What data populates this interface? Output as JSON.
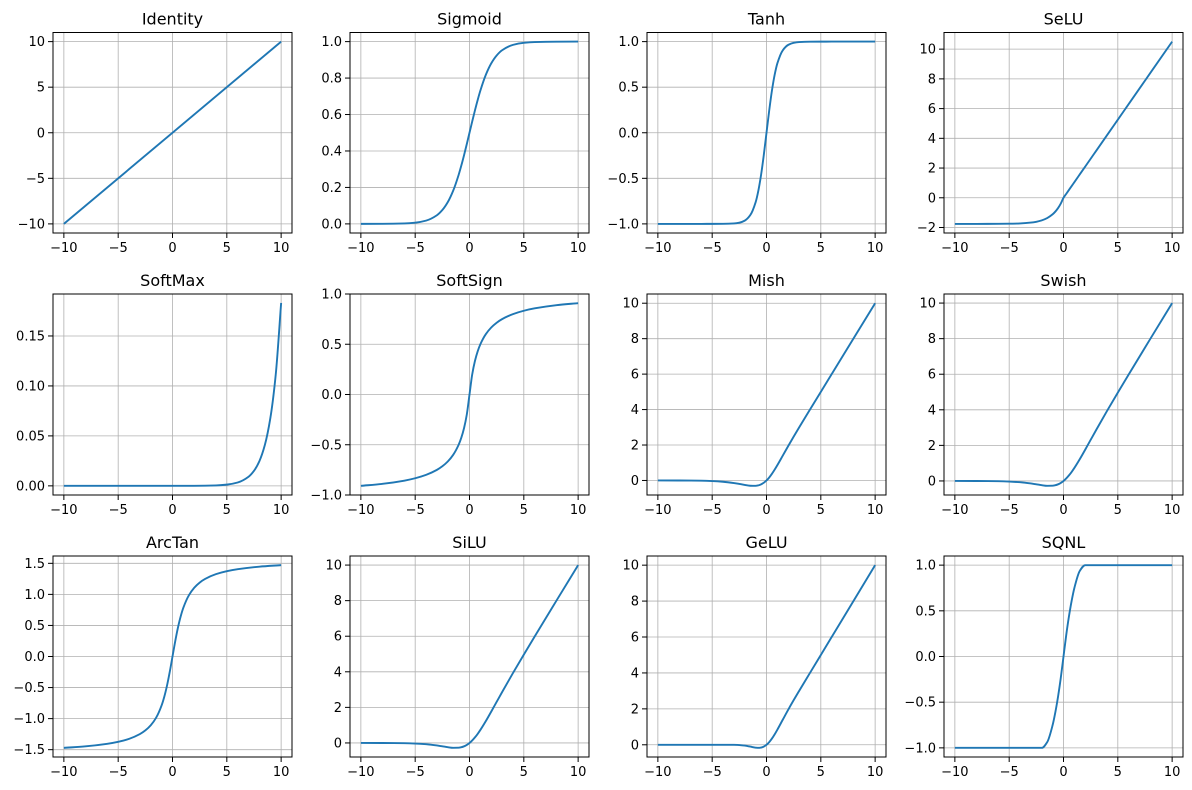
{
  "figure": {
    "line_color": "#1f77b4",
    "grid": true,
    "layout": "3x4 grid"
  },
  "chart_data": [
    {
      "type": "line",
      "title": "Identity",
      "xlim": [
        -11,
        11
      ],
      "ylim": [
        -11,
        11
      ],
      "xticks": [
        "−10",
        "−5",
        "0",
        "5",
        "10"
      ],
      "xtick_values": [
        -10,
        -5,
        0,
        5,
        10
      ],
      "yticks": [
        "−10",
        "−5",
        "0",
        "5",
        "10"
      ],
      "ytick_values": [
        -10,
        -5,
        0,
        5,
        10
      ],
      "x": [
        -10,
        10
      ],
      "y": [
        -10,
        10
      ]
    },
    {
      "type": "line",
      "title": "Sigmoid",
      "xlim": [
        -11,
        11
      ],
      "ylim": [
        -0.05,
        1.05
      ],
      "xticks": [
        "−10",
        "−5",
        "0",
        "5",
        "10"
      ],
      "xtick_values": [
        -10,
        -5,
        0,
        5,
        10
      ],
      "yticks": [
        "0.0",
        "0.2",
        "0.4",
        "0.6",
        "0.8",
        "1.0"
      ],
      "ytick_values": [
        0,
        0.2,
        0.4,
        0.6,
        0.8,
        1.0
      ],
      "x": [
        -10,
        -8,
        -6,
        -5,
        -4,
        -3,
        -2.5,
        -2,
        -1.5,
        -1,
        -0.75,
        -0.5,
        -0.25,
        0,
        0.25,
        0.5,
        0.75,
        1,
        1.5,
        2,
        2.5,
        3,
        4,
        5,
        6,
        8,
        10
      ],
      "y": [
        4.54e-05,
        0.000335,
        0.00247,
        0.00669,
        0.018,
        0.0474,
        0.0759,
        0.1192,
        0.1824,
        0.2689,
        0.3208,
        0.3775,
        0.4378,
        0.5,
        0.5622,
        0.6225,
        0.6792,
        0.7311,
        0.8176,
        0.8808,
        0.9241,
        0.9526,
        0.982,
        0.9933,
        0.9975,
        0.9997,
        1.0
      ]
    },
    {
      "type": "line",
      "title": "Tanh",
      "xlim": [
        -11,
        11
      ],
      "ylim": [
        -1.1,
        1.1
      ],
      "xticks": [
        "−10",
        "−5",
        "0",
        "5",
        "10"
      ],
      "xtick_values": [
        -10,
        -5,
        0,
        5,
        10
      ],
      "yticks": [
        "−1.0",
        "−0.5",
        "0.0",
        "0.5",
        "1.0"
      ],
      "ytick_values": [
        -1,
        -0.5,
        0,
        0.5,
        1
      ],
      "x": [
        -10,
        -8,
        -6,
        -5,
        -4,
        -3,
        -2.5,
        -2,
        -1.5,
        -1,
        -0.75,
        -0.5,
        -0.25,
        0,
        0.25,
        0.5,
        0.75,
        1,
        1.5,
        2,
        2.5,
        3,
        4,
        5,
        6,
        8,
        10
      ],
      "y": [
        -1,
        -1,
        -1,
        -0.9999,
        -0.9993,
        -0.9951,
        -0.9866,
        -0.964,
        -0.9051,
        -0.7616,
        -0.6351,
        -0.4621,
        -0.2449,
        0,
        0.2449,
        0.4621,
        0.6351,
        0.7616,
        0.9051,
        0.964,
        0.9866,
        0.9951,
        0.9993,
        0.9999,
        1,
        1,
        1
      ]
    },
    {
      "type": "line",
      "title": "SeLU",
      "xlim": [
        -11,
        11
      ],
      "ylim": [
        -2.37,
        11.12
      ],
      "xticks": [
        "−10",
        "−5",
        "0",
        "5",
        "10"
      ],
      "xtick_values": [
        -10,
        -5,
        0,
        5,
        10
      ],
      "yticks": [
        "−2",
        "0",
        "2",
        "4",
        "6",
        "8",
        "10"
      ],
      "ytick_values": [
        -2,
        0,
        2,
        4,
        6,
        8,
        10
      ],
      "x": [
        -10,
        -8,
        -6,
        -5,
        -4,
        -3,
        -2.5,
        -2,
        -1.5,
        -1,
        -0.75,
        -0.5,
        -0.25,
        0,
        0.25,
        0.5,
        0.75,
        1,
        1.5,
        2,
        2.5,
        3,
        4,
        5,
        6,
        8,
        10
      ],
      "y": [
        -1.758,
        -1.7575,
        -1.7537,
        -1.7463,
        -1.7259,
        -1.6706,
        -1.6138,
        -1.5202,
        -1.3658,
        -1.1113,
        -0.9276,
        -0.6918,
        -0.3889,
        0,
        0.2627,
        0.5254,
        0.788,
        1.0507,
        1.5761,
        2.1014,
        2.6268,
        3.1521,
        4.2028,
        5.2535,
        6.3042,
        8.4056,
        10.507
      ]
    },
    {
      "type": "line",
      "title": "SoftMax",
      "xlim": [
        -11,
        11
      ],
      "ylim": [
        -0.00915,
        0.192
      ],
      "xticks": [
        "−10",
        "−5",
        "0",
        "5",
        "10"
      ],
      "xtick_values": [
        -10,
        -5,
        0,
        5,
        10
      ],
      "yticks": [
        "0.00",
        "0.05",
        "0.10",
        "0.15"
      ],
      "ytick_values": [
        0,
        0.05,
        0.1,
        0.15
      ],
      "x": [
        -10,
        -5,
        0,
        2,
        4,
        5,
        6,
        7,
        7.5,
        8,
        8.5,
        9,
        9.5,
        10
      ],
      "y": [
        0,
        0,
        8.3e-06,
        6.14e-05,
        0.000454,
        0.00123,
        0.00335,
        0.00911,
        0.01502,
        0.02477,
        0.04084,
        0.06732,
        0.111,
        0.183
      ]
    },
    {
      "type": "line",
      "title": "SoftSign",
      "xlim": [
        -11,
        11
      ],
      "ylim": [
        -1.0,
        1.0
      ],
      "xticks": [
        "−10",
        "−5",
        "0",
        "5",
        "10"
      ],
      "xtick_values": [
        -10,
        -5,
        0,
        5,
        10
      ],
      "yticks": [
        "−1.0",
        "−0.5",
        "0.0",
        "0.5",
        "1.0"
      ],
      "ytick_values": [
        -1,
        -0.5,
        0,
        0.5,
        1
      ],
      "x": [
        -10,
        -8,
        -6,
        -5,
        -4,
        -3,
        -2.5,
        -2,
        -1.5,
        -1,
        -0.75,
        -0.5,
        -0.25,
        0,
        0.25,
        0.5,
        0.75,
        1,
        1.5,
        2,
        2.5,
        3,
        4,
        5,
        6,
        8,
        10
      ],
      "y": [
        -0.9091,
        -0.8889,
        -0.8571,
        -0.8333,
        -0.8,
        -0.75,
        -0.7143,
        -0.6667,
        -0.6,
        -0.5,
        -0.4286,
        -0.3333,
        -0.2,
        0,
        0.2,
        0.3333,
        0.4286,
        0.5,
        0.6,
        0.6667,
        0.7143,
        0.75,
        0.8,
        0.8333,
        0.8571,
        0.8889,
        0.9091
      ]
    },
    {
      "type": "line",
      "title": "Mish",
      "xlim": [
        -11,
        11
      ],
      "ylim": [
        -0.82,
        10.52
      ],
      "xticks": [
        "−10",
        "−5",
        "0",
        "5",
        "10"
      ],
      "xtick_values": [
        -10,
        -5,
        0,
        5,
        10
      ],
      "yticks": [
        "0",
        "2",
        "4",
        "6",
        "8",
        "10"
      ],
      "ytick_values": [
        0,
        2,
        4,
        6,
        8,
        10
      ],
      "x": [
        -10,
        -8,
        -6,
        -5,
        -4,
        -3,
        -2.5,
        -2,
        -1.5,
        -1,
        -0.75,
        -0.5,
        -0.25,
        0,
        0.25,
        0.5,
        0.75,
        1,
        1.5,
        2,
        2.5,
        3,
        4,
        5,
        6,
        8,
        10
      ],
      "y": [
        -0.00045,
        -0.00268,
        -0.01486,
        -0.03357,
        -0.0726,
        -0.1457,
        -0.1968,
        -0.2525,
        -0.2981,
        -0.3034,
        -0.2765,
        -0.2207,
        -0.1299,
        0,
        0.1696,
        0.3753,
        0.61,
        0.8651,
        1.4033,
        1.9442,
        2.4716,
        2.9865,
        3.9974,
        4.9996,
        6.0,
        8.0,
        10.0
      ]
    },
    {
      "type": "line",
      "title": "Swish",
      "xlim": [
        -11,
        11
      ],
      "ylim": [
        -0.79,
        10.51
      ],
      "xticks": [
        "−10",
        "−5",
        "0",
        "5",
        "10"
      ],
      "xtick_values": [
        -10,
        -5,
        0,
        5,
        10
      ],
      "yticks": [
        "0",
        "2",
        "4",
        "6",
        "8",
        "10"
      ],
      "ytick_values": [
        0,
        2,
        4,
        6,
        8,
        10
      ],
      "x": [
        -10,
        -8,
        -6,
        -5,
        -4,
        -3,
        -2.5,
        -2,
        -1.5,
        -1,
        -0.75,
        -0.5,
        -0.25,
        0,
        0.25,
        0.5,
        0.75,
        1,
        1.5,
        2,
        2.5,
        3,
        4,
        5,
        6,
        8,
        10
      ],
      "y": [
        -0.00045,
        -0.00268,
        -0.01483,
        -0.03346,
        -0.07194,
        -0.14228,
        -0.18968,
        -0.23841,
        -0.27357,
        -0.26894,
        -0.24061,
        -0.18877,
        -0.10945,
        0,
        0.14055,
        0.31123,
        0.50939,
        0.73106,
        1.22643,
        1.76159,
        2.31032,
        2.85772,
        3.92806,
        4.96654,
        5.98517,
        7.99732,
        9.99955
      ]
    },
    {
      "type": "line",
      "title": "ArcTan",
      "xlim": [
        -11,
        11
      ],
      "ylim": [
        -1.618,
        1.618
      ],
      "xticks": [
        "−10",
        "−5",
        "0",
        "5",
        "10"
      ],
      "xtick_values": [
        -10,
        -5,
        0,
        5,
        10
      ],
      "yticks": [
        "−1.5",
        "−1.0",
        "−0.5",
        "0.0",
        "0.5",
        "1.0",
        "1.5"
      ],
      "ytick_values": [
        -1.5,
        -1,
        -0.5,
        0,
        0.5,
        1,
        1.5
      ],
      "x": [
        -10,
        -8,
        -6,
        -5,
        -4,
        -3,
        -2.5,
        -2,
        -1.5,
        -1,
        -0.75,
        -0.5,
        -0.25,
        0,
        0.25,
        0.5,
        0.75,
        1,
        1.5,
        2,
        2.5,
        3,
        4,
        5,
        6,
        8,
        10
      ],
      "y": [
        -1.4711,
        -1.4464,
        -1.4056,
        -1.3734,
        -1.3258,
        -1.249,
        -1.1903,
        -1.1071,
        -0.9828,
        -0.7854,
        -0.6435,
        -0.4636,
        -0.245,
        0,
        0.245,
        0.4636,
        0.6435,
        0.7854,
        0.9828,
        1.1071,
        1.1903,
        1.249,
        1.3258,
        1.3734,
        1.4056,
        1.4464,
        1.4711
      ]
    },
    {
      "type": "line",
      "title": "SiLU",
      "xlim": [
        -11,
        11
      ],
      "ylim": [
        -0.79,
        10.51
      ],
      "xticks": [
        "−10",
        "−5",
        "0",
        "5",
        "10"
      ],
      "xtick_values": [
        -10,
        -5,
        0,
        5,
        10
      ],
      "yticks": [
        "0",
        "2",
        "4",
        "6",
        "8",
        "10"
      ],
      "ytick_values": [
        0,
        2,
        4,
        6,
        8,
        10
      ],
      "x": [
        -10,
        -8,
        -6,
        -5,
        -4,
        -3,
        -2.5,
        -2,
        -1.5,
        -1,
        -0.75,
        -0.5,
        -0.25,
        0,
        0.25,
        0.5,
        0.75,
        1,
        1.5,
        2,
        2.5,
        3,
        4,
        5,
        6,
        8,
        10
      ],
      "y": [
        -0.00045,
        -0.00268,
        -0.01483,
        -0.03346,
        -0.07194,
        -0.14228,
        -0.18968,
        -0.23841,
        -0.27357,
        -0.26894,
        -0.24061,
        -0.18877,
        -0.10945,
        0,
        0.14055,
        0.31123,
        0.50939,
        0.73106,
        1.22643,
        1.76159,
        2.31032,
        2.85772,
        3.92806,
        4.96654,
        5.98517,
        7.99732,
        9.99955
      ]
    },
    {
      "type": "line",
      "title": "GeLU",
      "xlim": [
        -11,
        11
      ],
      "ylim": [
        -0.68,
        10.51
      ],
      "xticks": [
        "−10",
        "−5",
        "0",
        "5",
        "10"
      ],
      "xtick_values": [
        -10,
        -5,
        0,
        5,
        10
      ],
      "yticks": [
        "0",
        "2",
        "4",
        "6",
        "8",
        "10"
      ],
      "ytick_values": [
        0,
        2,
        4,
        6,
        8,
        10
      ],
      "x": [
        -10,
        -8,
        -6,
        -5,
        -4,
        -3,
        -2.5,
        -2,
        -1.5,
        -1,
        -0.75,
        -0.5,
        -0.25,
        0,
        0.25,
        0.5,
        0.75,
        1,
        1.5,
        2,
        2.5,
        3,
        4,
        5,
        6,
        8,
        10
      ],
      "y": [
        0,
        0,
        0,
        0,
        -0.00013,
        -0.00405,
        -0.01553,
        -0.0455,
        -0.1002,
        -0.1587,
        -0.17,
        -0.1543,
        -0.1003,
        0,
        0.1497,
        0.3457,
        0.58,
        0.8413,
        1.3998,
        1.9545,
        2.4845,
        2.996,
        3.9999,
        5.0,
        6.0,
        8.0,
        10.0
      ]
    },
    {
      "type": "line",
      "title": "SQNL",
      "xlim": [
        -11,
        11
      ],
      "ylim": [
        -1.1,
        1.1
      ],
      "xticks": [
        "−10",
        "−5",
        "0",
        "5",
        "10"
      ],
      "xtick_values": [
        -10,
        -5,
        0,
        5,
        10
      ],
      "yticks": [
        "−1.0",
        "−0.5",
        "0.0",
        "0.5",
        "1.0"
      ],
      "ytick_values": [
        -1,
        -0.5,
        0,
        0.5,
        1
      ],
      "x": [
        -10,
        -8,
        -6,
        -5,
        -4,
        -3,
        -2.5,
        -2,
        -1.5,
        -1,
        -0.75,
        -0.5,
        -0.25,
        0,
        0.25,
        0.5,
        0.75,
        1,
        1.5,
        2,
        2.5,
        3,
        4,
        5,
        6,
        8,
        10
      ],
      "y": [
        -1,
        -1,
        -1,
        -1,
        -1,
        -1,
        -1,
        -1,
        -0.9375,
        -0.75,
        -0.6094,
        -0.4375,
        -0.2344,
        0,
        0.2344,
        0.4375,
        0.6094,
        0.75,
        0.9375,
        1,
        1,
        1,
        1,
        1,
        1,
        1,
        1
      ]
    }
  ]
}
